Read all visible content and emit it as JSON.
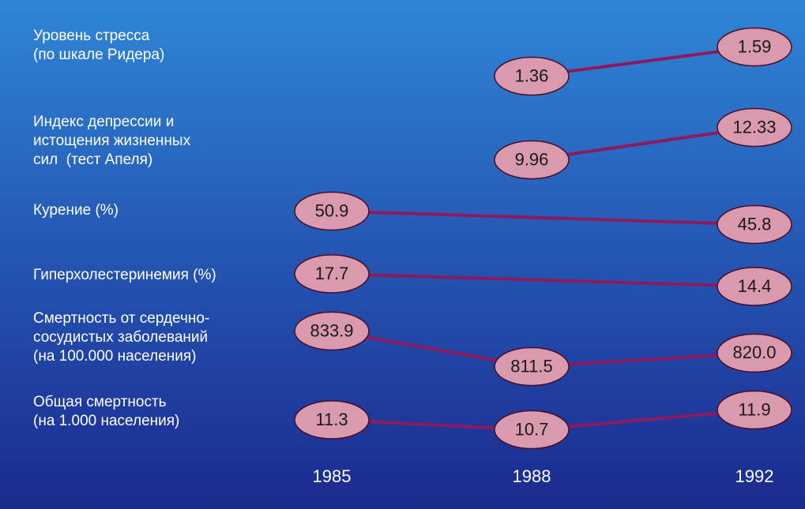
{
  "chart_data": {
    "type": "slope",
    "categories": [
      "1985",
      "1988",
      "1992"
    ],
    "series": [
      {
        "name": "Уровень стресса\n(по шкале Ридера)",
        "values": [
          null,
          1.36,
          1.59
        ]
      },
      {
        "name": "Индекс депрессии и\nистощения жизненных\nсил  (тест Апеля)",
        "values": [
          null,
          9.96,
          12.33
        ]
      },
      {
        "name": "Курение (%)",
        "values": [
          50.9,
          null,
          45.8
        ]
      },
      {
        "name": "Гиперхолестеринемия (%)",
        "values": [
          17.7,
          null,
          14.4
        ]
      },
      {
        "name": "Смертность от сердечно-\nсосудистых заболеваний\n(на 100.000 населения)",
        "values": [
          833.9,
          811.5,
          820.0
        ],
        "value_labels": [
          "833.9",
          "811.5",
          "820.0"
        ]
      },
      {
        "name": "Общая смертность\n(на 1.000 населения)",
        "values": [
          11.3,
          10.7,
          11.9
        ]
      }
    ],
    "line_color": "#8e1a5e",
    "marker_color": "#d99aad"
  }
}
